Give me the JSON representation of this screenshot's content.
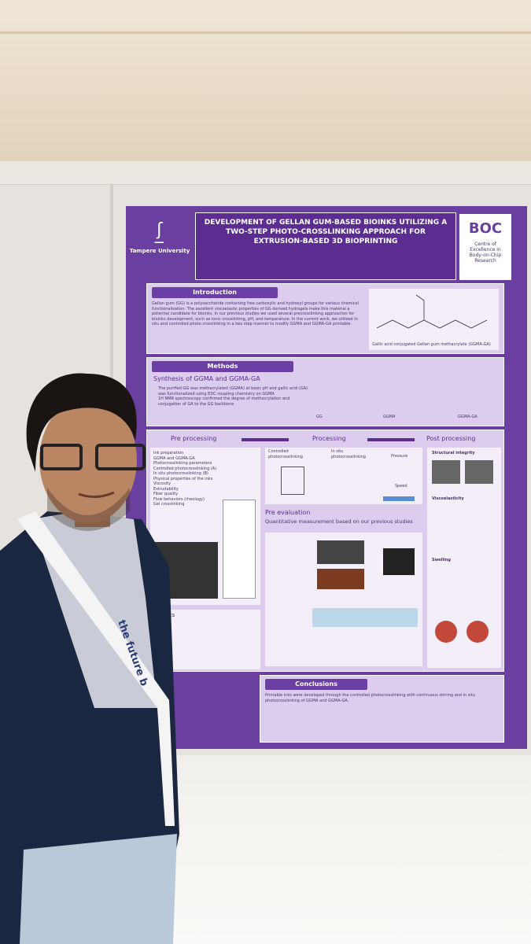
{
  "poster": {
    "institution": "Tampere University",
    "title": "Development of Gellan Gum-Based Bioinks Utilizing a Two-Step Photo-Crosslinking Approach for Extrusion-Based 3D Bioprinting",
    "center_logo": "BOC",
    "center_name": "Centre of Excellence in Body-on-Chip Research",
    "introduction": {
      "heading": "Introduction",
      "text": "Gellan gum (GG) is a polysaccharide containing free carboxylic and hydroxyl groups for various chemical functionalization. The excellent viscoelastic properties of GG derived hydrogels make this material a potential candidate for bioinks. In our previous studies we used several precrosslinking approaches for bioinks development, such as ionic crosslinking, pH, and temperature. In the current work, we utilized in situ and controlled photo crosslinking in a two step manner to modify GGMA and GGMA-GA printable.",
      "figure_caption": "Gallic acid conjugated Gellan gum methacrylate (GGMA-GA)"
    },
    "methods": {
      "heading": "Methods",
      "subheading": "Synthesis of GGMA and GGMA-GA",
      "bullets": [
        "The purified GG was methacrylated (GGMA) at basic pH and gallic acid (GA) was functionalized using EDC coupling chemistry on GGMA",
        "1H NMR spectroscopy confirmed the degree of methacrylation and conjugation of GA to the GG backbone"
      ],
      "molecules": [
        "GG",
        "GGMA",
        "GGMA-GA"
      ]
    },
    "workflow": {
      "stages": [
        "Pre processing",
        "Processing",
        "Post processing"
      ],
      "pre_processing": [
        "Ink preparation",
        "GGMA and GGMA-GA",
        "Photocrosslinking parameters",
        "Controlled photocrosslinking (A)",
        "In situ photocrosslinking (B)",
        "Physical properties of the inks",
        "Viscosity",
        "Extrudability",
        "Fiber quality",
        "Flow behaviors (rheology)",
        "Gel crosslinking"
      ],
      "processing_labels": [
        "Controlled photocrosslinking",
        "In situ photocrosslinking",
        "Pressure",
        "Speed"
      ],
      "post_processing": [
        "Structural integrity",
        "Viscoelasticity",
        "Swelling"
      ],
      "pre_evaluation": "Pre evaluation",
      "quantitative": "Quantitative measurement based on our previous studies",
      "results": "Results"
    },
    "conclusions": {
      "heading": "Conclusions",
      "text": "Printable inks were developed through the controlled photocrosslinking with continuous stirring and in situ photocrosslinking of GGMA and GGMA-GA."
    }
  },
  "lanyard_text": "the future b"
}
